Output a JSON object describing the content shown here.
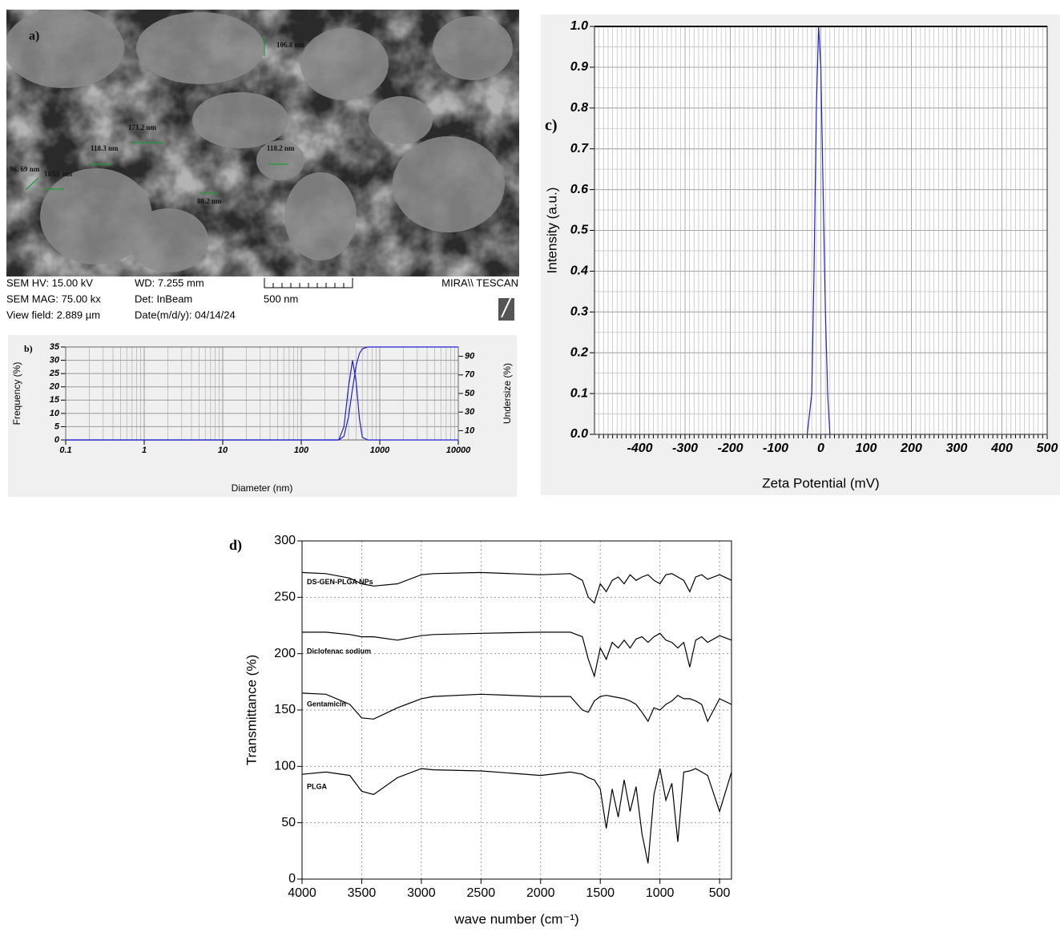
{
  "sem_image": {
    "panel_label": "a)",
    "measurements": [
      "106.8 nm",
      "171.2 nm",
      "118.3 nm",
      "118.2 nm",
      "96. 69 nm",
      "103.1 nm",
      "80.2 nm"
    ],
    "info": {
      "hv": "SEM HV: 15.00 kV",
      "wd": "WD: 7.255 mm",
      "mag": "SEM MAG: 75.00 kx",
      "det": "Det: InBeam",
      "field": "View field: 2.889 µm",
      "date": "Date(m/d/y): 04/14/24",
      "scale": "500 nm",
      "brand": "MIRA\\\\ TESCAN"
    }
  },
  "chart_data": [
    {
      "type": "line",
      "panel_label": "b)",
      "xlabel": "Diameter (nm)",
      "ylabel": "Frequency (%)",
      "y2label": "Undersize (%)",
      "xlog": true,
      "xlim": [
        0.1,
        10000
      ],
      "xticks": [
        0.1,
        1,
        10,
        100,
        1000,
        10000
      ],
      "ylim": [
        0,
        35
      ],
      "yticks": [
        0,
        5,
        10,
        15,
        20,
        25,
        30,
        35
      ],
      "y2lim": [
        0,
        100
      ],
      "y2ticks": [
        10,
        30,
        50,
        70,
        90
      ],
      "grid": true,
      "x": [
        0.1,
        1,
        10,
        100,
        300,
        350,
        400,
        450,
        500,
        550,
        600,
        700,
        1000,
        10000
      ],
      "series": [
        {
          "color": "#2020d0",
          "values": [
            0,
            0,
            0,
            0,
            0,
            5,
            20,
            30,
            22,
            8,
            1,
            0,
            0,
            0
          ]
        },
        {
          "color": "#2020d0",
          "axis": "y2",
          "values": [
            0,
            0,
            0,
            0,
            0,
            4,
            25,
            55,
            80,
            93,
            98,
            100,
            100,
            100
          ]
        }
      ]
    },
    {
      "type": "line",
      "panel_label": "c)",
      "xlabel": "Zeta Potential (mV)",
      "ylabel": "Intensity (a.u.)",
      "xlim": [
        -500,
        500
      ],
      "xticks": [
        -400,
        -300,
        -200,
        -100,
        0,
        100,
        200,
        300,
        400,
        500
      ],
      "ylim": [
        0,
        1
      ],
      "yticks": [
        {
          "value": 0,
          "label": "0.0"
        },
        0.1,
        0.2,
        0.3,
        0.4,
        0.5,
        0.6,
        0.7,
        0.8,
        0.9,
        {
          "value": 1,
          "label": "1.0"
        }
      ],
      "grid": true,
      "x": [
        -30,
        -20,
        -15,
        -10,
        -5,
        0,
        5,
        10,
        15,
        20
      ],
      "series": [
        {
          "color": "#2020d0",
          "values": [
            0,
            0.1,
            0.4,
            0.8,
            1,
            0.9,
            0.6,
            0.3,
            0.1,
            0
          ]
        }
      ]
    },
    {
      "type": "line",
      "panel_label": "d)",
      "xlabel": "wave number (cm⁻¹)",
      "ylabel": "Transmittance (%)",
      "xlim": [
        4000,
        400
      ],
      "xticks": [
        4000,
        3500,
        3000,
        2500,
        2000,
        1500,
        1000,
        500
      ],
      "ylim": [
        0,
        300
      ],
      "yticks": [
        0,
        50,
        100,
        150,
        200,
        250,
        300
      ],
      "grid": true,
      "x": [
        4000,
        3800,
        3600,
        3500,
        3400,
        3200,
        3000,
        2900,
        2500,
        2000,
        1750,
        1650,
        1600,
        1550,
        1500,
        1450,
        1400,
        1350,
        1300,
        1250,
        1200,
        1150,
        1100,
        1050,
        1000,
        950,
        900,
        850,
        800,
        750,
        700,
        650,
        600,
        500,
        400
      ],
      "series": [
        {
          "name": "DS-GEN-PLGA NPs",
          "color": "#000000",
          "values": [
            272,
            271,
            267,
            262,
            260,
            262,
            270,
            271,
            272,
            270,
            271,
            265,
            250,
            245,
            262,
            255,
            265,
            268,
            262,
            270,
            265,
            268,
            270,
            265,
            262,
            270,
            271,
            268,
            265,
            255,
            268,
            270,
            266,
            270,
            265
          ]
        },
        {
          "name": "Diclofenac sodium",
          "color": "#000000",
          "values": [
            219,
            219,
            217,
            215,
            215,
            212,
            216,
            217,
            218,
            219,
            219,
            215,
            195,
            180,
            205,
            195,
            210,
            205,
            212,
            205,
            213,
            215,
            210,
            215,
            218,
            212,
            210,
            205,
            210,
            188,
            212,
            215,
            210,
            216,
            212
          ]
        },
        {
          "name": "Gentamicin",
          "color": "#000000",
          "values": [
            165,
            164,
            155,
            143,
            142,
            152,
            160,
            162,
            164,
            162,
            162,
            150,
            148,
            158,
            162,
            163,
            162,
            161,
            160,
            158,
            155,
            148,
            140,
            152,
            150,
            155,
            158,
            163,
            160,
            160,
            158,
            155,
            140,
            160,
            155
          ]
        },
        {
          "name": "PLGA",
          "color": "#000000",
          "values": [
            93,
            95,
            92,
            78,
            75,
            90,
            98,
            97,
            96,
            92,
            95,
            93,
            90,
            88,
            80,
            45,
            80,
            55,
            88,
            60,
            82,
            40,
            14,
            75,
            98,
            70,
            85,
            33,
            95,
            96,
            98,
            95,
            92,
            60,
            95
          ]
        }
      ]
    }
  ]
}
